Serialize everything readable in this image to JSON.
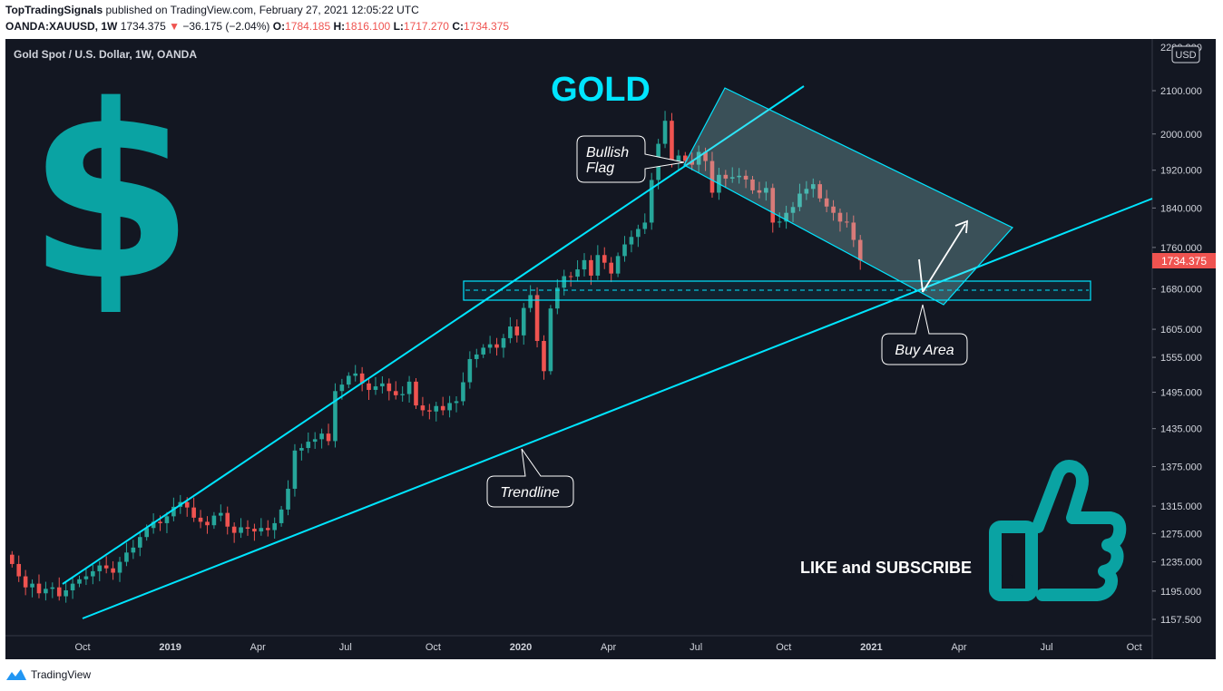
{
  "header": {
    "author": "TopTradingSignals",
    "published_text": "published on TradingView.com, February 27, 2021 12:05:22 UTC",
    "symbol": "OANDA:XAUUSD, 1W",
    "last_price": "1734.375",
    "change_arrow": "▼",
    "change": "−36.175 (−2.04%)",
    "open_label": "O:",
    "open": "1784.185",
    "high_label": "H:",
    "high": "1816.100",
    "low_label": "L:",
    "low": "1717.270",
    "close_label": "C:",
    "close": "1734.375"
  },
  "footer": {
    "brand": "TradingView"
  },
  "colors": {
    "background": "#131722",
    "up": "#26a69a",
    "down": "#ef5350",
    "cyan": "#00e5ff",
    "teal": "#0aa3a3"
  },
  "chart_data": {
    "type": "candlestick",
    "title": "Gold Spot / U.S. Dollar, 1W, OANDA",
    "currency": "USD",
    "last_price_label": "1734.375",
    "x_ticks": [
      "Oct",
      "2019",
      "Apr",
      "Jul",
      "Oct",
      "2020",
      "Apr",
      "Jul",
      "Oct",
      "2021",
      "Apr",
      "Jul",
      "Oct"
    ],
    "y_ticks": [
      "2100.000",
      "2000.000",
      "1920.000",
      "1840.000",
      "1760.000",
      "1680.000",
      "1605.000",
      "1555.000",
      "1495.000",
      "1435.000",
      "1375.000",
      "1315.000",
      "1275.000",
      "1235.000",
      "1195.000",
      "1157.500"
    ],
    "y_top_label": "2200.000",
    "ylim": [
      1145,
      2210
    ],
    "y_scale": "log",
    "annotations": {
      "title_text": "GOLD",
      "bullish_flag_line1": "Bullish",
      "bullish_flag_line2": "Flag",
      "buy_area": "Buy Area",
      "trendline": "Trendline",
      "cta": "LIKE and SUBSCRIBE"
    },
    "candles_close": [
      1232,
      1215,
      1200,
      1205,
      1192,
      1198,
      1200,
      1188,
      1196,
      1205,
      1211,
      1215,
      1222,
      1230,
      1226,
      1220,
      1235,
      1248,
      1255,
      1270,
      1283,
      1292,
      1290,
      1300,
      1314,
      1321,
      1313,
      1298,
      1292,
      1287,
      1301,
      1305,
      1285,
      1276,
      1284,
      1282,
      1278,
      1283,
      1280,
      1290,
      1310,
      1341,
      1400,
      1404,
      1414,
      1418,
      1427,
      1415,
      1497,
      1508,
      1523,
      1527,
      1510,
      1499,
      1505,
      1510,
      1497,
      1490,
      1492,
      1513,
      1473,
      1465,
      1463,
      1472,
      1465,
      1477,
      1480,
      1512,
      1552,
      1560,
      1572,
      1578,
      1572,
      1589,
      1610,
      1594,
      1644,
      1668,
      1584,
      1531,
      1643,
      1682,
      1704,
      1703,
      1717,
      1735,
      1705,
      1745,
      1730,
      1709,
      1743,
      1766,
      1781,
      1797,
      1810,
      1899,
      1978,
      2030,
      1940,
      1952,
      1940,
      1932,
      1960,
      1940,
      1872,
      1910,
      1902,
      1905,
      1908,
      1900,
      1877,
      1872,
      1882,
      1810,
      1812,
      1830,
      1842,
      1870,
      1880,
      1890,
      1860,
      1843,
      1830,
      1812,
      1810,
      1775,
      1734.375
    ]
  }
}
